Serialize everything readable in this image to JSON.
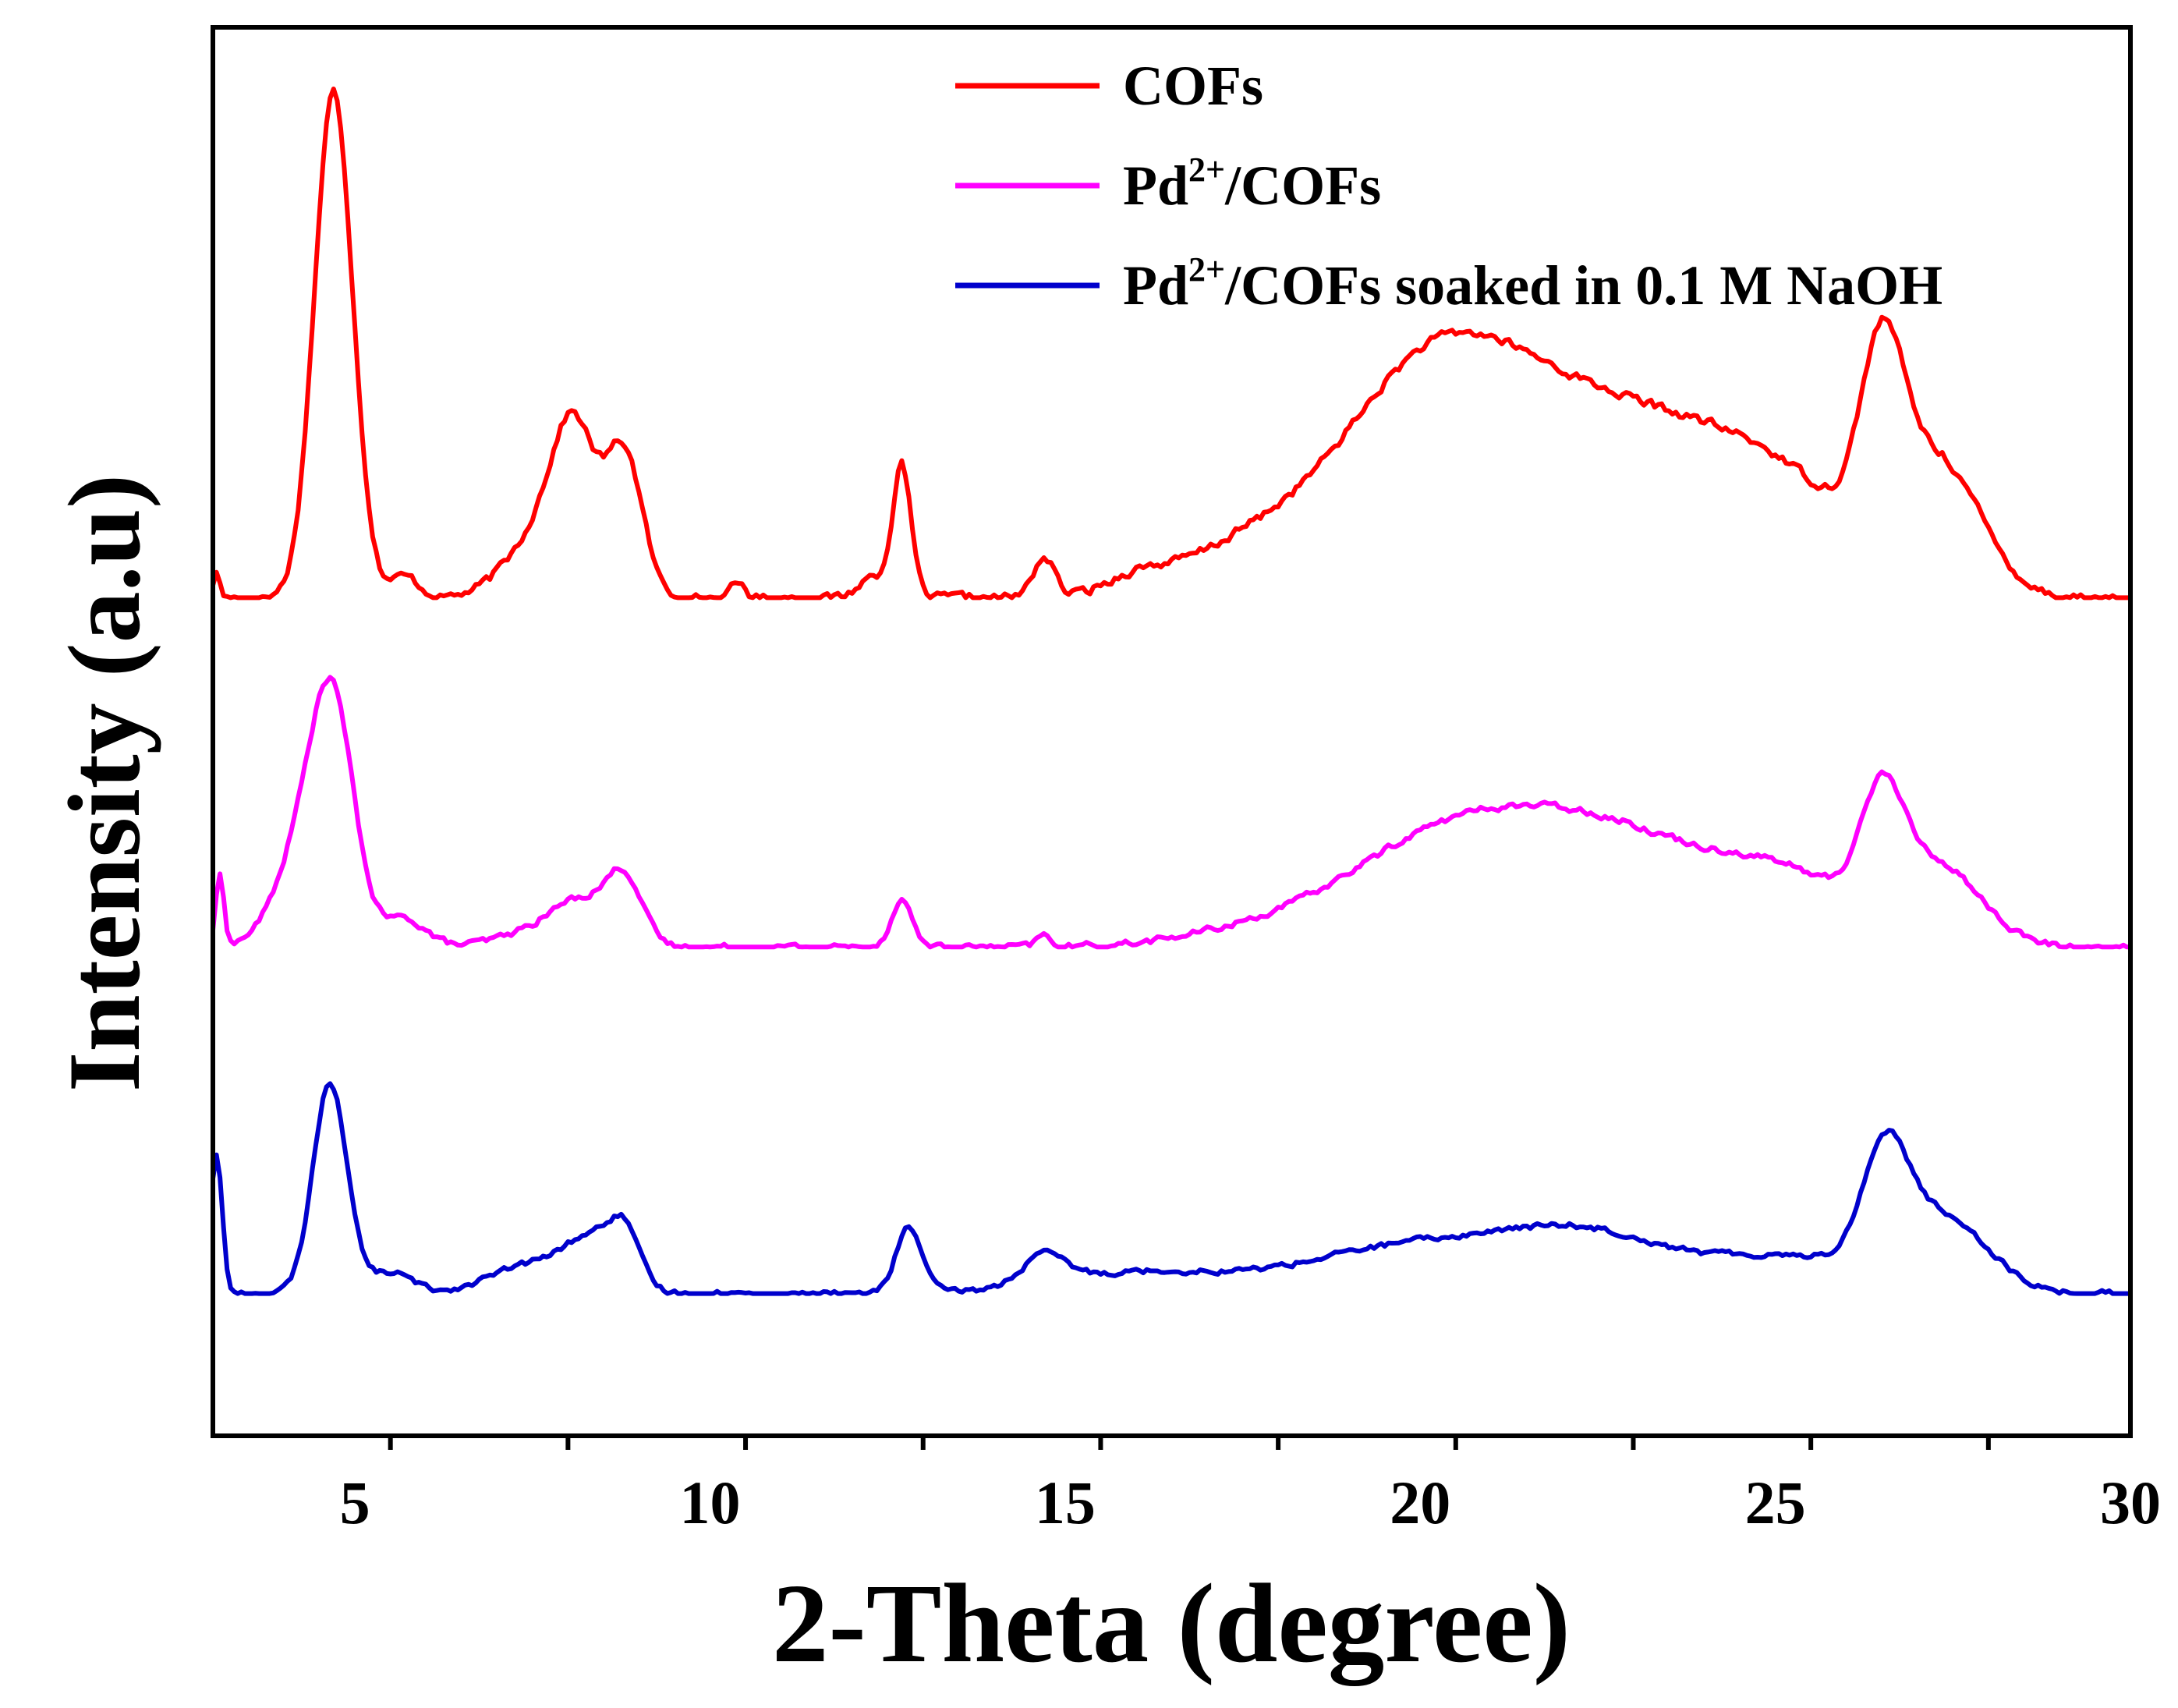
{
  "chart_data": {
    "type": "line",
    "title": "",
    "xlabel": "2-Theta (degree)",
    "ylabel": "Intensity (a.u)",
    "xlim": [
      3,
      30
    ],
    "ylim": [
      0,
      100
    ],
    "grid": false,
    "legend_position": "top-right",
    "x_ticks": [
      5,
      10,
      15,
      20,
      25,
      30
    ],
    "x_tick_labels": [
      "5",
      "10",
      "15",
      "20",
      "25",
      "30"
    ],
    "y_ticks": [],
    "series": [
      {
        "name": "COFs",
        "legend_main": "COFs",
        "legend_sup": "",
        "legend_tail": "",
        "color": "#ff0000",
        "offset": 59.5,
        "peaks": [
          [
            3.05,
            1.7,
            0.05
          ],
          [
            4.7,
            35.9,
            0.27
          ],
          [
            5.7,
            1.5,
            0.2
          ],
          [
            7.7,
            5,
            0.5
          ],
          [
            8.1,
            9.3,
            0.3
          ],
          [
            8.8,
            9.9,
            0.25
          ],
          [
            10.4,
            1,
            0.1
          ],
          [
            12.7,
            9.2,
            0.13
          ],
          [
            12.3,
            1.5,
            0.2
          ],
          [
            14.7,
            2.8,
            0.15
          ],
          [
            16,
            1,
            0.4
          ],
          [
            17.5,
            3,
            1
          ],
          [
            19.8,
            9,
            1.2
          ],
          [
            21.3,
            12.5,
            1.5
          ],
          [
            23.5,
            7,
            1.2
          ],
          [
            25.2,
            6.5,
            1.1
          ],
          [
            26.5,
            12.5,
            0.3
          ],
          [
            27.3,
            9,
            0.6
          ]
        ],
        "noise": 0.55
      },
      {
        "name": "Pd2+/COFs",
        "legend_main": "Pd",
        "legend_sup": "2+",
        "legend_tail": "/COFs",
        "color": "#ff00ff",
        "offset": 34.7,
        "peaks": [
          [
            3.1,
            5,
            0.06
          ],
          [
            4.3,
            7,
            0.4
          ],
          [
            4.7,
            14.5,
            0.3
          ],
          [
            5.7,
            2,
            0.3
          ],
          [
            7.5,
            1,
            0.5
          ],
          [
            8.2,
            3,
            0.4
          ],
          [
            8.8,
            4.5,
            0.25
          ],
          [
            12.7,
            3.3,
            0.15
          ],
          [
            14.7,
            0.8,
            0.1
          ],
          [
            17.5,
            0.8,
            1
          ],
          [
            19.8,
            4.5,
            1.3
          ],
          [
            21.5,
            6.5,
            1.4
          ],
          [
            23.2,
            4.5,
            1.2
          ],
          [
            25.2,
            4.5,
            1.0
          ],
          [
            26.5,
            8,
            0.3
          ],
          [
            27.3,
            5.5,
            0.6
          ]
        ],
        "noise": 0.4
      },
      {
        "name": "Pd2+/COFs soaked in 0.1 M NaOH",
        "legend_main": "Pd",
        "legend_sup": "2+",
        "legend_tail": "/COFs soaked in 0.1 M NaOH",
        "color": "#0000cc",
        "offset": 10.1,
        "peaks": [
          [
            3.05,
            10,
            0.08
          ],
          [
            4.65,
            15,
            0.24
          ],
          [
            5.5,
            1.5,
            0.3
          ],
          [
            7.5,
            2,
            0.6
          ],
          [
            8.4,
            3.5,
            0.4
          ],
          [
            8.8,
            3,
            0.2
          ],
          [
            12.8,
            4.7,
            0.18
          ],
          [
            14.7,
            2,
            0.3
          ],
          [
            16,
            1.5,
            1.2
          ],
          [
            19,
            1,
            1.2
          ],
          [
            21,
            3.5,
            1.8
          ],
          [
            22.5,
            2,
            1
          ],
          [
            25.3,
            2.5,
            1.2
          ],
          [
            26.55,
            8.2,
            0.32
          ],
          [
            27.4,
            5,
            0.6
          ]
        ],
        "noise": 0.35
      }
    ]
  }
}
